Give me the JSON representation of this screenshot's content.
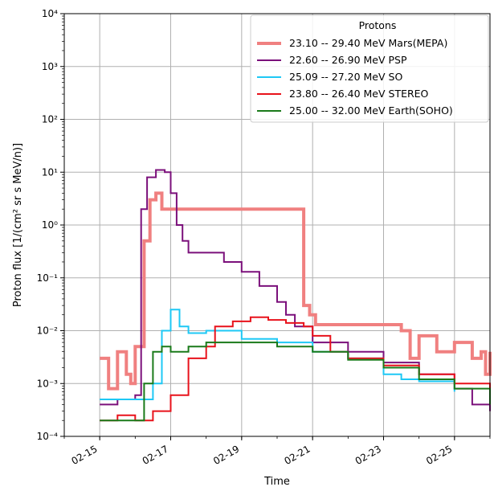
{
  "chart_data": {
    "type": "line",
    "xlabel": "Time",
    "ylabel": "Proton flux [1/(cm² sr s MeV/n)]",
    "y_scale": "log",
    "ylim": [
      0.0001,
      10000
    ],
    "xlim": [
      "2022-02-14",
      "2022-02-26"
    ],
    "x_ticks": [
      "02-15",
      "02-17",
      "02-19",
      "02-21",
      "02-23",
      "02-25"
    ],
    "y_ticks": [
      "10⁻⁴",
      "10⁻³",
      "10⁻²",
      "10⁻¹",
      "10⁰",
      "10¹",
      "10²",
      "10³",
      "10⁴"
    ],
    "grid": true,
    "legend_title": "Protons",
    "legend_position": "top-right",
    "series": [
      {
        "name": "23.10 -- 29.40 MeV Mars(MEPA)",
        "color": "#f08080",
        "width": 4,
        "points": [
          [
            "2022-02-15T00:00",
            0.003
          ],
          [
            "2022-02-15T06:00",
            0.0008
          ],
          [
            "2022-02-15T12:00",
            0.004
          ],
          [
            "2022-02-15T18:00",
            0.0015
          ],
          [
            "2022-02-15T21:00",
            0.001
          ],
          [
            "2022-02-16T00:00",
            0.005
          ],
          [
            "2022-02-16T06:00",
            0.5
          ],
          [
            "2022-02-16T10:00",
            3.0
          ],
          [
            "2022-02-16T14:00",
            4.0
          ],
          [
            "2022-02-16T18:00",
            2.0
          ],
          [
            "2022-02-20T18:00",
            0.03
          ],
          [
            "2022-02-20T22:00",
            0.02
          ],
          [
            "2022-02-21T02:00",
            0.013
          ],
          [
            "2022-02-23T12:00",
            0.01
          ],
          [
            "2022-02-23T18:00",
            0.003
          ],
          [
            "2022-02-24T00:00",
            0.008
          ],
          [
            "2022-02-24T12:00",
            0.004
          ],
          [
            "2022-02-25T00:00",
            0.006
          ],
          [
            "2022-02-25T12:00",
            0.003
          ],
          [
            "2022-02-25T18:00",
            0.004
          ],
          [
            "2022-02-25T21:00",
            0.0015
          ],
          [
            "2022-02-26T00:00",
            0.004
          ]
        ]
      },
      {
        "name": "22.60 -- 26.90 MeV PSP",
        "color": "#7b107b",
        "width": 2,
        "points": [
          [
            "2022-02-15T00:00",
            0.0004
          ],
          [
            "2022-02-15T12:00",
            0.0005
          ],
          [
            "2022-02-16T00:00",
            0.0006
          ],
          [
            "2022-02-16T04:00",
            2.0
          ],
          [
            "2022-02-16T08:00",
            8.0
          ],
          [
            "2022-02-16T14:00",
            11.0
          ],
          [
            "2022-02-16T20:00",
            10.0
          ],
          [
            "2022-02-17T00:00",
            4.0
          ],
          [
            "2022-02-17T04:00",
            1.0
          ],
          [
            "2022-02-17T08:00",
            0.5
          ],
          [
            "2022-02-17T12:00",
            0.3
          ],
          [
            "2022-02-18T00:00",
            0.3
          ],
          [
            "2022-02-18T12:00",
            0.2
          ],
          [
            "2022-02-19T00:00",
            0.13
          ],
          [
            "2022-02-19T12:00",
            0.07
          ],
          [
            "2022-02-20T00:00",
            0.035
          ],
          [
            "2022-02-20T06:00",
            0.02
          ],
          [
            "2022-02-20T12:00",
            0.012
          ],
          [
            "2022-02-21T00:00",
            0.006
          ],
          [
            "2022-02-22T00:00",
            0.004
          ],
          [
            "2022-02-23T00:00",
            0.0025
          ],
          [
            "2022-02-24T00:00",
            0.0015
          ],
          [
            "2022-02-25T00:00",
            0.0008
          ],
          [
            "2022-02-25T12:00",
            0.0004
          ],
          [
            "2022-02-26T00:00",
            0.0003
          ]
        ]
      },
      {
        "name": "25.09 -- 27.20 MeV SO",
        "color": "#1ec8f5",
        "width": 2,
        "points": [
          [
            "2022-02-15T00:00",
            0.0005
          ],
          [
            "2022-02-15T12:00",
            0.0005
          ],
          [
            "2022-02-16T00:00",
            0.0005
          ],
          [
            "2022-02-16T12:00",
            0.001
          ],
          [
            "2022-02-16T18:00",
            0.01
          ],
          [
            "2022-02-17T00:00",
            0.025
          ],
          [
            "2022-02-17T06:00",
            0.012
          ],
          [
            "2022-02-17T12:00",
            0.009
          ],
          [
            "2022-02-18T00:00",
            0.01
          ],
          [
            "2022-02-19T00:00",
            0.007
          ],
          [
            "2022-02-20T00:00",
            0.006
          ],
          [
            "2022-02-21T00:00",
            0.004
          ],
          [
            "2022-02-22T00:00",
            0.003
          ],
          [
            "2022-02-23T00:00",
            0.0015
          ],
          [
            "2022-02-23T12:00",
            0.0012
          ],
          [
            "2022-02-24T00:00",
            0.0011
          ],
          [
            "2022-02-25T00:00",
            0.0007
          ]
        ]
      },
      {
        "name": "23.80 -- 26.40 MeV STEREO",
        "color": "#e8121b",
        "width": 2,
        "points": [
          [
            "2022-02-15T00:00",
            0.0002
          ],
          [
            "2022-02-15T12:00",
            0.00025
          ],
          [
            "2022-02-16T00:00",
            0.0002
          ],
          [
            "2022-02-16T12:00",
            0.0003
          ],
          [
            "2022-02-17T00:00",
            0.0006
          ],
          [
            "2022-02-17T12:00",
            0.003
          ],
          [
            "2022-02-18T00:00",
            0.005
          ],
          [
            "2022-02-18T06:00",
            0.012
          ],
          [
            "2022-02-18T18:00",
            0.015
          ],
          [
            "2022-02-19T06:00",
            0.018
          ],
          [
            "2022-02-19T18:00",
            0.016
          ],
          [
            "2022-02-20T06:00",
            0.014
          ],
          [
            "2022-02-20T18:00",
            0.012
          ],
          [
            "2022-02-21T00:00",
            0.008
          ],
          [
            "2022-02-21T12:00",
            0.004
          ],
          [
            "2022-02-22T00:00",
            0.003
          ],
          [
            "2022-02-23T00:00",
            0.0022
          ],
          [
            "2022-02-24T00:00",
            0.0015
          ],
          [
            "2022-02-25T00:00",
            0.001
          ],
          [
            "2022-02-26T00:00",
            0.0004
          ]
        ]
      },
      {
        "name": "25.00 -- 32.00 MeV Earth(SOHO)",
        "color": "#1a7a1a",
        "width": 2,
        "points": [
          [
            "2022-02-15T00:00",
            0.0002
          ],
          [
            "2022-02-15T12:00",
            0.0002
          ],
          [
            "2022-02-16T00:00",
            0.0002
          ],
          [
            "2022-02-16T06:00",
            0.001
          ],
          [
            "2022-02-16T12:00",
            0.004
          ],
          [
            "2022-02-16T18:00",
            0.005
          ],
          [
            "2022-02-17T00:00",
            0.004
          ],
          [
            "2022-02-17T12:00",
            0.005
          ],
          [
            "2022-02-18T00:00",
            0.006
          ],
          [
            "2022-02-19T00:00",
            0.006
          ],
          [
            "2022-02-20T00:00",
            0.005
          ],
          [
            "2022-02-21T00:00",
            0.004
          ],
          [
            "2022-02-22T00:00",
            0.0028
          ],
          [
            "2022-02-23T00:00",
            0.002
          ],
          [
            "2022-02-24T00:00",
            0.0012
          ],
          [
            "2022-02-25T00:00",
            0.0008
          ],
          [
            "2022-02-26T00:00",
            0.0004
          ]
        ]
      }
    ]
  }
}
